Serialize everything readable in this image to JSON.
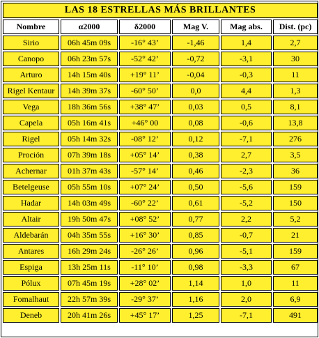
{
  "title": "LAS 18 ESTRELLAS MÁS BRILLANTES",
  "headers": [
    "Nombre",
    "α2000",
    "δ2000",
    "Mag V.",
    "Mag abs.",
    "Dist. (pc)"
  ],
  "rows": [
    [
      "Sirio",
      "06h 45m 09s",
      "-16° 43’",
      "-1,46",
      "1,4",
      "2,7"
    ],
    [
      "Canopo",
      "06h 23m 57s",
      "-52° 42’",
      "-0,72",
      "-3,1",
      "30"
    ],
    [
      "Arturo",
      "14h 15m 40s",
      "+19° 11’",
      "-0,04",
      "-0,3",
      "11"
    ],
    [
      "Rigel Kentaur",
      "14h 39m 37s",
      "-60° 50’",
      "0,0",
      "4,4",
      "1,3"
    ],
    [
      "Vega",
      "18h 36m 56s",
      "+38° 47’",
      "0,03",
      "0,5",
      "8,1"
    ],
    [
      "Capela",
      "05h 16m 41s",
      "+46° 00",
      "0,08",
      "-0,6",
      "13,8"
    ],
    [
      "Rigel",
      "05h 14m 32s",
      "-08° 12’",
      "0,12",
      "-7,1",
      "276"
    ],
    [
      "Proción",
      "07h 39m 18s",
      "+05° 14’",
      "0,38",
      "2,7",
      "3,5"
    ],
    [
      "Achernar",
      "01h 37m 43s",
      "-57° 14’",
      "0,46",
      "-2,3",
      "36"
    ],
    [
      "Betelgeuse",
      "05h 55m 10s",
      "+07° 24’",
      "0,50",
      "-5,6",
      "159"
    ],
    [
      "Hadar",
      "14h 03m 49s",
      "-60° 22’",
      "0,61",
      "-5,2",
      "150"
    ],
    [
      "Altair",
      "19h 50m 47s",
      "+08° 52’",
      "0,77",
      "2,2",
      "5,2"
    ],
    [
      "Aldebarán",
      "04h 35m 55s",
      "+16° 30’",
      "0,85",
      "-0,7",
      "21"
    ],
    [
      "Antares",
      "16h 29m 24s",
      "-26° 26’",
      "0,96",
      "-5,1",
      "159"
    ],
    [
      "Espiga",
      "13h 25m 11s",
      "-11° 10’",
      "0,98",
      "-3,3",
      "67"
    ],
    [
      "Pólux",
      "07h 45m 19s",
      "+28° 02’",
      "1,14",
      "1,0",
      "11"
    ],
    [
      "Fomalhaut",
      "22h 57m 39s",
      "-29° 37’",
      "1,16",
      "2,0",
      "6,9"
    ],
    [
      "Deneb",
      "20h 41m 26s",
      "+45° 17’",
      "1,25",
      "-7,1",
      "491"
    ]
  ]
}
